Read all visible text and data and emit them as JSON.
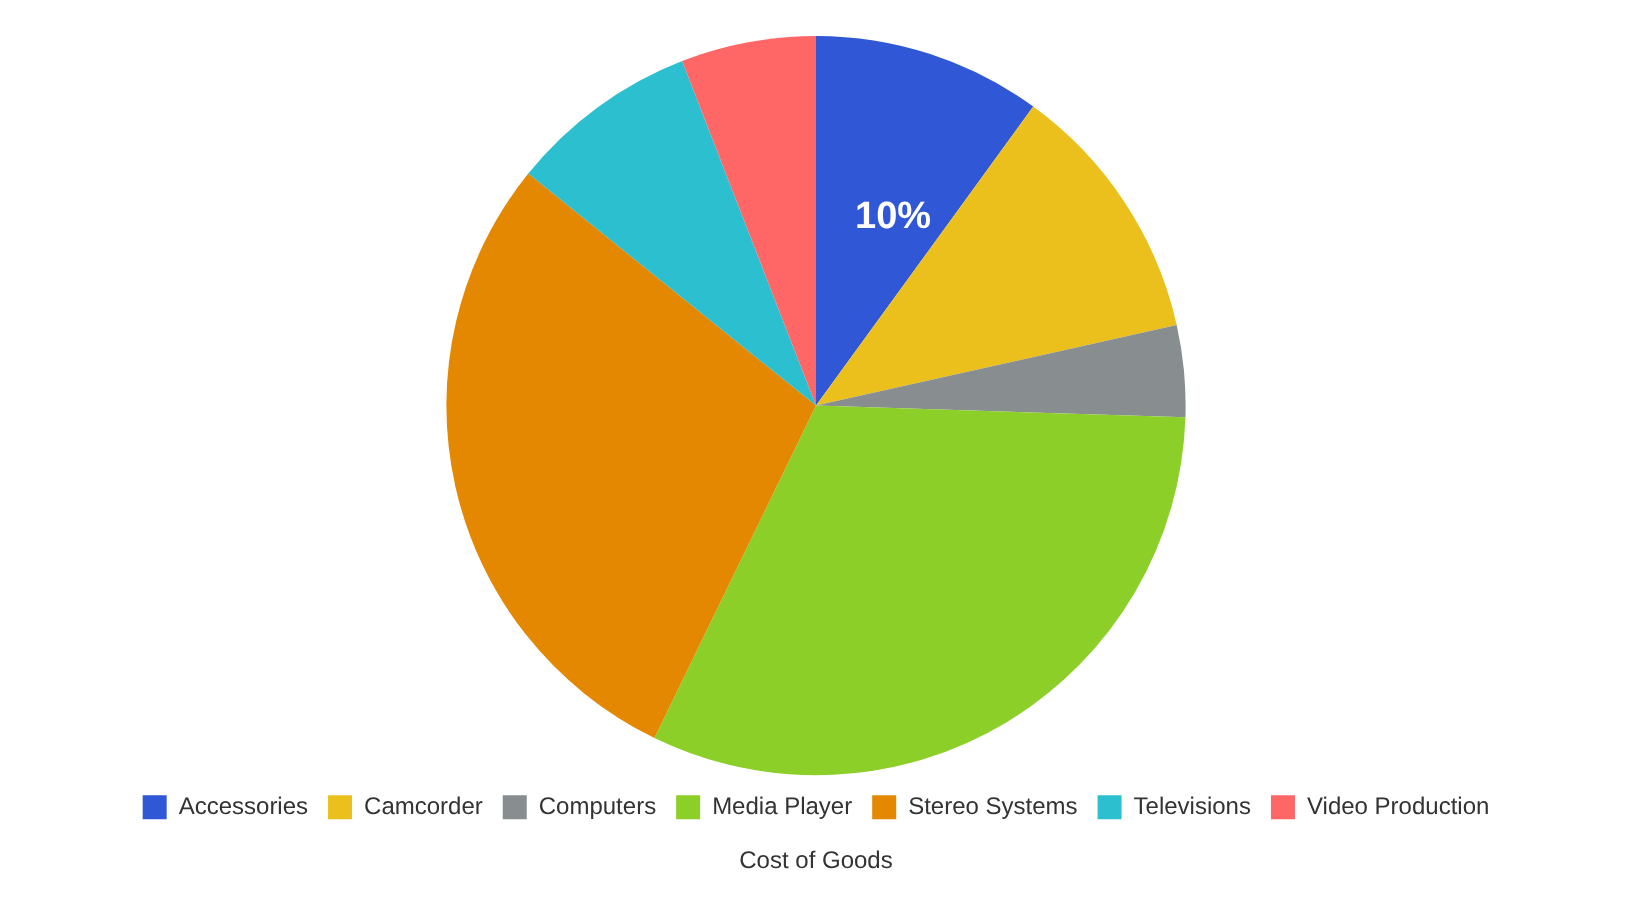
{
  "chart_data": {
    "type": "pie",
    "title": "Cost of Goods",
    "categories": [
      "Accessories",
      "Camcorder",
      "Computers",
      "Media Player",
      "Stereo Systems",
      "Televisions",
      "Video Production"
    ],
    "values": [
      10,
      11.5,
      4,
      31.7,
      28.6,
      8.3,
      5.9
    ],
    "colors": [
      "#3057d5",
      "#ecc01c",
      "#888d8f",
      "#8ccf28",
      "#e38800",
      "#2cbfd0",
      "#ff6666"
    ],
    "value_labels": [
      "10%",
      null,
      null,
      null,
      null,
      null,
      null
    ],
    "legend": "bottom"
  }
}
